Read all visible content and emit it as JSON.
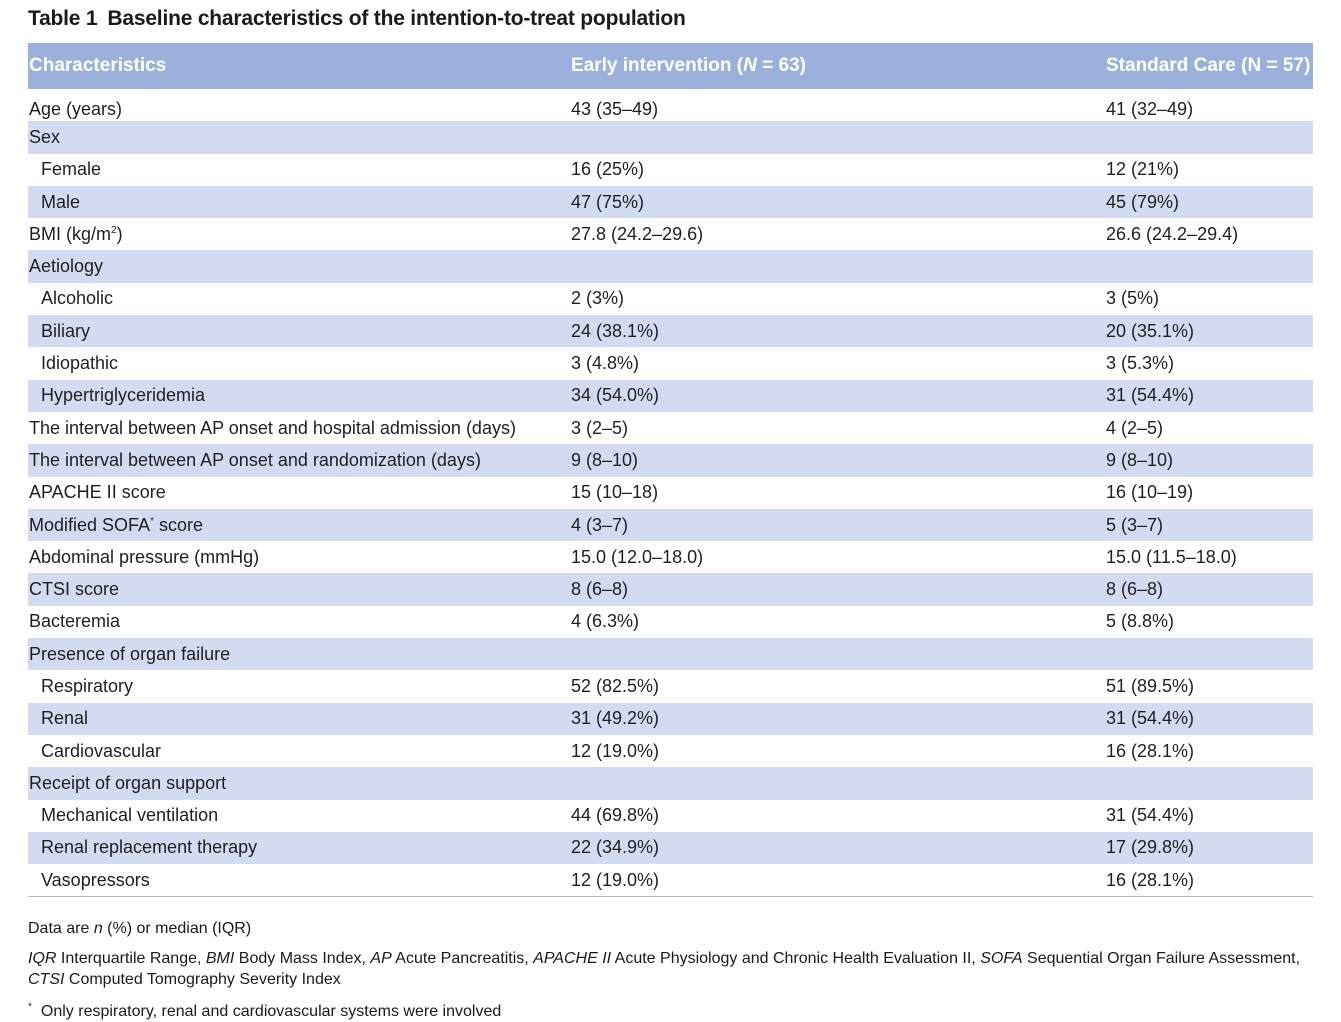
{
  "title": {
    "number": "Table 1",
    "text": "Baseline characteristics of the intention-to-treat population"
  },
  "columns": [
    "Characteristics",
    "Early intervention (",
    "N",
    " = 63)",
    "Standard Care (N = 57)"
  ],
  "header": {
    "col1": "Characteristics",
    "col2_pre": "Early intervention (",
    "col2_italic": "N",
    "col2_post": " = 63)",
    "col3": "Standard Care (N = 57)"
  },
  "rows": [
    {
      "label": "Age (years)",
      "early": "43 (35–49)",
      "standard": "41 (32–49)"
    },
    {
      "label": "Sex",
      "early": "",
      "standard": ""
    },
    {
      "label": "Female",
      "early": "16 (25%)",
      "standard": "12 (21%)"
    },
    {
      "label": "Male",
      "early": "47 (75%)",
      "standard": "45 (79%)"
    },
    {
      "label": "BMI (kg/m",
      "label_sup": "2",
      "label_post": ")",
      "early": "27.8 (24.2–29.6)",
      "standard": "26.6 (24.2–29.4)"
    },
    {
      "label": "Aetiology",
      "early": "",
      "standard": ""
    },
    {
      "label": "Alcoholic",
      "early": "2 (3%)",
      "standard": "3 (5%)"
    },
    {
      "label": "Biliary",
      "early": "24 (38.1%)",
      "standard": "20 (35.1%)"
    },
    {
      "label": "Idiopathic",
      "early": "3 (4.8%)",
      "standard": "3 (5.3%)"
    },
    {
      "label": "Hypertriglyceridemia",
      "early": "34 (54.0%)",
      "standard": "31 (54.4%)"
    },
    {
      "label": "The interval between AP onset and hospital admission (days)",
      "early": "3 (2–5)",
      "standard": "4 (2–5)"
    },
    {
      "label": "The interval between AP onset and randomization (days)",
      "early": "9 (8–10)",
      "standard": "9 (8–10)"
    },
    {
      "label": "APACHE II score",
      "early": "15 (10–18)",
      "standard": "16 (10–19)"
    },
    {
      "label": "Modified SOFA",
      "label_sup": "*",
      "label_post": " score",
      "early": "4 (3–7)",
      "standard": "5 (3–7)"
    },
    {
      "label": "Abdominal pressure (mmHg)",
      "early": "15.0 (12.0–18.0)",
      "standard": "15.0 (11.5–18.0)"
    },
    {
      "label": "CTSI score",
      "early": "8 (6–8)",
      "standard": "8 (6–8)"
    },
    {
      "label": "Bacteremia",
      "early": "4 (6.3%)",
      "standard": "5 (8.8%)"
    },
    {
      "label": "Presence of organ failure",
      "early": "",
      "standard": ""
    },
    {
      "label": "Respiratory",
      "early": "52 (82.5%)",
      "standard": "51 (89.5%)"
    },
    {
      "label": "Renal",
      "early": "31 (49.2%)",
      "standard": "31 (54.4%)"
    },
    {
      "label": "Cardiovascular",
      "early": "12 (19.0%)",
      "standard": "16 (28.1%)"
    },
    {
      "label": "Receipt of organ support",
      "early": "",
      "standard": ""
    },
    {
      "label": "Mechanical ventilation",
      "early": "44 (69.8%)",
      "standard": "31 (54.4%)"
    },
    {
      "label": "Renal replacement therapy",
      "early": "22 (34.9%)",
      "standard": "17 (29.8%)"
    },
    {
      "label": "Vasopressors",
      "early": "12 (19.0%)",
      "standard": "16 (28.1%)"
    }
  ],
  "footnotes": {
    "data_note": {
      "pre": "Data are ",
      "italic": "n",
      "post": " (%) or median (IQR)"
    },
    "abbreviations": [
      {
        "abbr": "IQR",
        "def": " Interquartile Range, "
      },
      {
        "abbr": "BMI",
        "def": " Body Mass Index, "
      },
      {
        "abbr": "AP",
        "def": " Acute Pancreatitis, "
      },
      {
        "abbr": "APACHE II",
        "def": " Acute Physiology and Chronic Health Evaluation II, "
      },
      {
        "abbr": "SOFA",
        "def": " Sequential Organ Failure Assessment, "
      },
      {
        "abbr": "CTSI",
        "def": " Computed Tomography Severity Index"
      }
    ],
    "asterisk_mark": "*",
    "asterisk_text": "Only respiratory, renal and cardiovascular systems were involved"
  },
  "colors": {
    "header_bg": "#9bb1db",
    "row_shade": "#d3dbf2",
    "header_text": "#ffffff"
  }
}
